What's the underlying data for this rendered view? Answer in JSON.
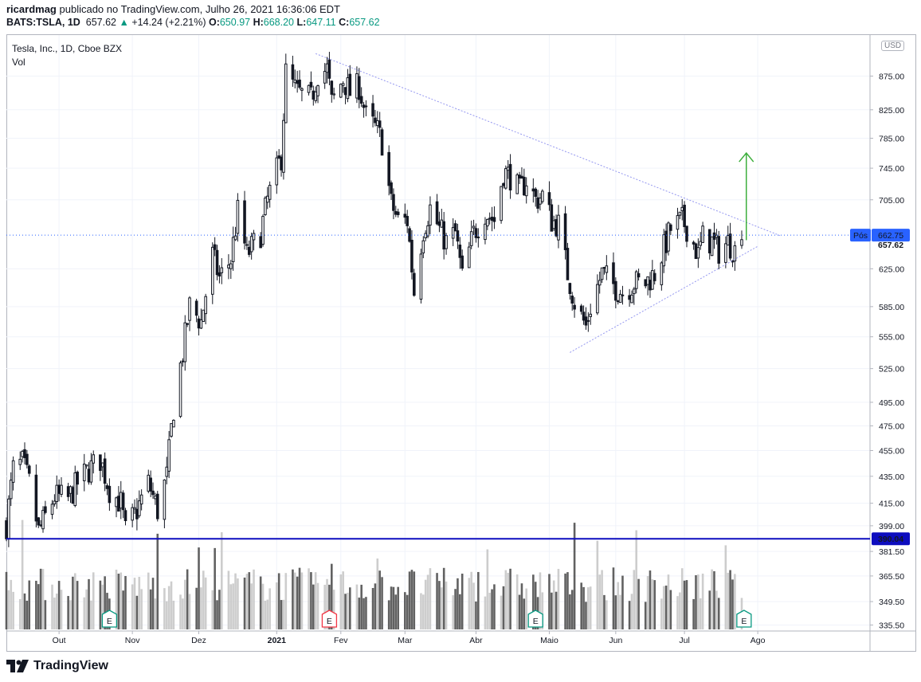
{
  "header": {
    "author": "ricardmag",
    "published_text": "publicado no TradingView.com, Julho 26, 2021 16:36:06 EDT",
    "symbol": "BATS:TSLA, 1D",
    "last": "657.62",
    "change_icon": "triangle-up-icon",
    "change": "+14.24 (+2.21%)",
    "o_label": "O:",
    "o_value": "650.97",
    "h_label": "H:",
    "h_value": "668.20",
    "l_label": "L:",
    "l_value": "647.11",
    "c_label": "C:",
    "c_value": "657.62"
  },
  "legend": {
    "title": "Tesla, Inc., 1D, Cboe BZX",
    "volume": "Vol"
  },
  "currency": "USD",
  "footer": {
    "logo_icon": "tradingview-logo-icon",
    "brand": "TradingView"
  },
  "colors": {
    "candle": "#131722",
    "vol_up": "#c8c8c8",
    "vol_down": "#505050",
    "trend": "#9598f0",
    "support": "#0d0dbf",
    "arrow": "#3cae3c",
    "pos_label": "#2962ff",
    "earnings_green": "#089981",
    "earnings_red": "#f23645"
  },
  "chart_data": {
    "type": "candlestick",
    "title": "Tesla, Inc., 1D, Cboe BZX",
    "y_scale": "log",
    "ylim": [
      332,
      940
    ],
    "y_ticks": [
      "875.00",
      "825.00",
      "785.00",
      "745.00",
      "705.00",
      "625.00",
      "585.00",
      "555.00",
      "525.00",
      "495.00",
      "475.00",
      "455.00",
      "435.00",
      "415.00",
      "399.00",
      "381.50",
      "365.50",
      "349.50",
      "335.50"
    ],
    "x_ticks": [
      {
        "label": "Out",
        "date": "2020-10-01"
      },
      {
        "label": "Nov",
        "date": "2020-11-02"
      },
      {
        "label": "Dez",
        "date": "2020-12-01"
      },
      {
        "label": "2021",
        "date": "2021-01-04"
      },
      {
        "label": "Fev",
        "date": "2021-02-01"
      },
      {
        "label": "Mar",
        "date": "2021-03-01"
      },
      {
        "label": "Abr",
        "date": "2021-04-01"
      },
      {
        "label": "Maio",
        "date": "2021-05-03"
      },
      {
        "label": "Jun",
        "date": "2021-06-01"
      },
      {
        "label": "Jul",
        "date": "2021-07-01"
      },
      {
        "label": "Ago",
        "date": "2021-08-02"
      }
    ],
    "x_range": [
      "2020-09-08",
      "2021-09-20"
    ],
    "price_path": [
      [
        "2020-09-08",
        400
      ],
      [
        "2020-09-11",
        440
      ],
      [
        "2020-09-15",
        445
      ],
      [
        "2020-09-18",
        430
      ],
      [
        "2020-09-22",
        395
      ],
      [
        "2020-09-25",
        405
      ],
      [
        "2020-09-29",
        420
      ],
      [
        "2020-10-05",
        418
      ],
      [
        "2020-10-09",
        430
      ],
      [
        "2020-10-14",
        440
      ],
      [
        "2020-10-19",
        448
      ],
      [
        "2020-10-23",
        425
      ],
      [
        "2020-10-28",
        415
      ],
      [
        "2020-10-30",
        395
      ],
      [
        "2020-11-04",
        410
      ],
      [
        "2020-11-09",
        430
      ],
      [
        "2020-11-13",
        410
      ],
      [
        "2020-11-17",
        435
      ],
      [
        "2020-11-20",
        490
      ],
      [
        "2020-11-24",
        540
      ],
      [
        "2020-11-27",
        585
      ],
      [
        "2020-12-02",
        570
      ],
      [
        "2020-12-07",
        640
      ],
      [
        "2020-12-10",
        615
      ],
      [
        "2020-12-15",
        635
      ],
      [
        "2020-12-18",
        690
      ],
      [
        "2020-12-22",
        640
      ],
      [
        "2020-12-28",
        665
      ],
      [
        "2020-12-31",
        705
      ],
      [
        "2021-01-06",
        760
      ],
      [
        "2021-01-08",
        880
      ],
      [
        "2021-01-13",
        850
      ],
      [
        "2021-01-19",
        840
      ],
      [
        "2021-01-22",
        880
      ],
      [
        "2021-01-26",
        885
      ],
      [
        "2021-01-28",
        835
      ],
      [
        "2021-02-02",
        870
      ],
      [
        "2021-02-05",
        850
      ],
      [
        "2021-02-09",
        860
      ],
      [
        "2021-02-12",
        815
      ],
      [
        "2021-02-17",
        795
      ],
      [
        "2021-02-19",
        780
      ],
      [
        "2021-02-23",
        700
      ],
      [
        "2021-02-26",
        680
      ],
      [
        "2021-03-02",
        680
      ],
      [
        "2021-03-05",
        600
      ],
      [
        "2021-03-09",
        670
      ],
      [
        "2021-03-12",
        695
      ],
      [
        "2021-03-16",
        670
      ],
      [
        "2021-03-19",
        655
      ],
      [
        "2021-03-23",
        665
      ],
      [
        "2021-03-26",
        615
      ],
      [
        "2021-03-31",
        665
      ],
      [
        "2021-04-05",
        690
      ],
      [
        "2021-04-09",
        680
      ],
      [
        "2021-04-13",
        740
      ],
      [
        "2021-04-16",
        735
      ],
      [
        "2021-04-20",
        715
      ],
      [
        "2021-04-23",
        730
      ],
      [
        "2021-04-27",
        705
      ],
      [
        "2021-04-30",
        710
      ],
      [
        "2021-05-04",
        680
      ],
      [
        "2021-05-07",
        675
      ],
      [
        "2021-05-11",
        620
      ],
      [
        "2021-05-14",
        590
      ],
      [
        "2021-05-19",
        565
      ],
      [
        "2021-05-21",
        585
      ],
      [
        "2021-05-26",
        620
      ],
      [
        "2021-06-01",
        605
      ],
      [
        "2021-06-04",
        600
      ],
      [
        "2021-06-09",
        610
      ],
      [
        "2021-06-14",
        610
      ],
      [
        "2021-06-18",
        620
      ],
      [
        "2021-06-23",
        655
      ],
      [
        "2021-06-25",
        670
      ],
      [
        "2021-06-30",
        680
      ],
      [
        "2021-07-02",
        672
      ],
      [
        "2021-07-07",
        640
      ],
      [
        "2021-07-09",
        660
      ],
      [
        "2021-07-13",
        655
      ],
      [
        "2021-07-16",
        645
      ],
      [
        "2021-07-20",
        655
      ],
      [
        "2021-07-23",
        645
      ],
      [
        "2021-07-26",
        657.62
      ]
    ],
    "last_candle": {
      "date": "2021-07-26",
      "open": 650.97,
      "high": 668.2,
      "low": 647.11,
      "close": 657.62
    },
    "volume_ylim": [
      0,
      110
    ],
    "price_labels": [
      {
        "text": "Pós",
        "value": 662.75,
        "style": "blue"
      },
      {
        "text": "662.75",
        "value": 662.75,
        "style": "blue"
      },
      {
        "text": "657.62",
        "value": 657.62,
        "style": "plain"
      },
      {
        "text": "390.04",
        "value": 390.04,
        "style": "navy"
      }
    ],
    "annotations": {
      "horizontal_line": 390.04,
      "dotted_price_line": 662.75,
      "upper_trendline": [
        [
          "2021-01-21",
          910
        ],
        [
          "2021-08-12",
          662
        ]
      ],
      "lower_trendline": [
        [
          "2021-05-12",
          540
        ],
        [
          "2021-08-02",
          650
        ]
      ],
      "arrow": [
        [
          "2021-07-28",
          657
        ],
        [
          "2021-07-28",
          765
        ]
      ],
      "earnings": [
        {
          "text": "E",
          "date": "2020-10-23",
          "color": "green"
        },
        {
          "text": "E",
          "date": "2021-01-27",
          "color": "red"
        },
        {
          "text": "E",
          "date": "2021-04-27",
          "color": "green"
        },
        {
          "text": "E",
          "date": "2021-07-27",
          "color": "green"
        }
      ]
    }
  }
}
